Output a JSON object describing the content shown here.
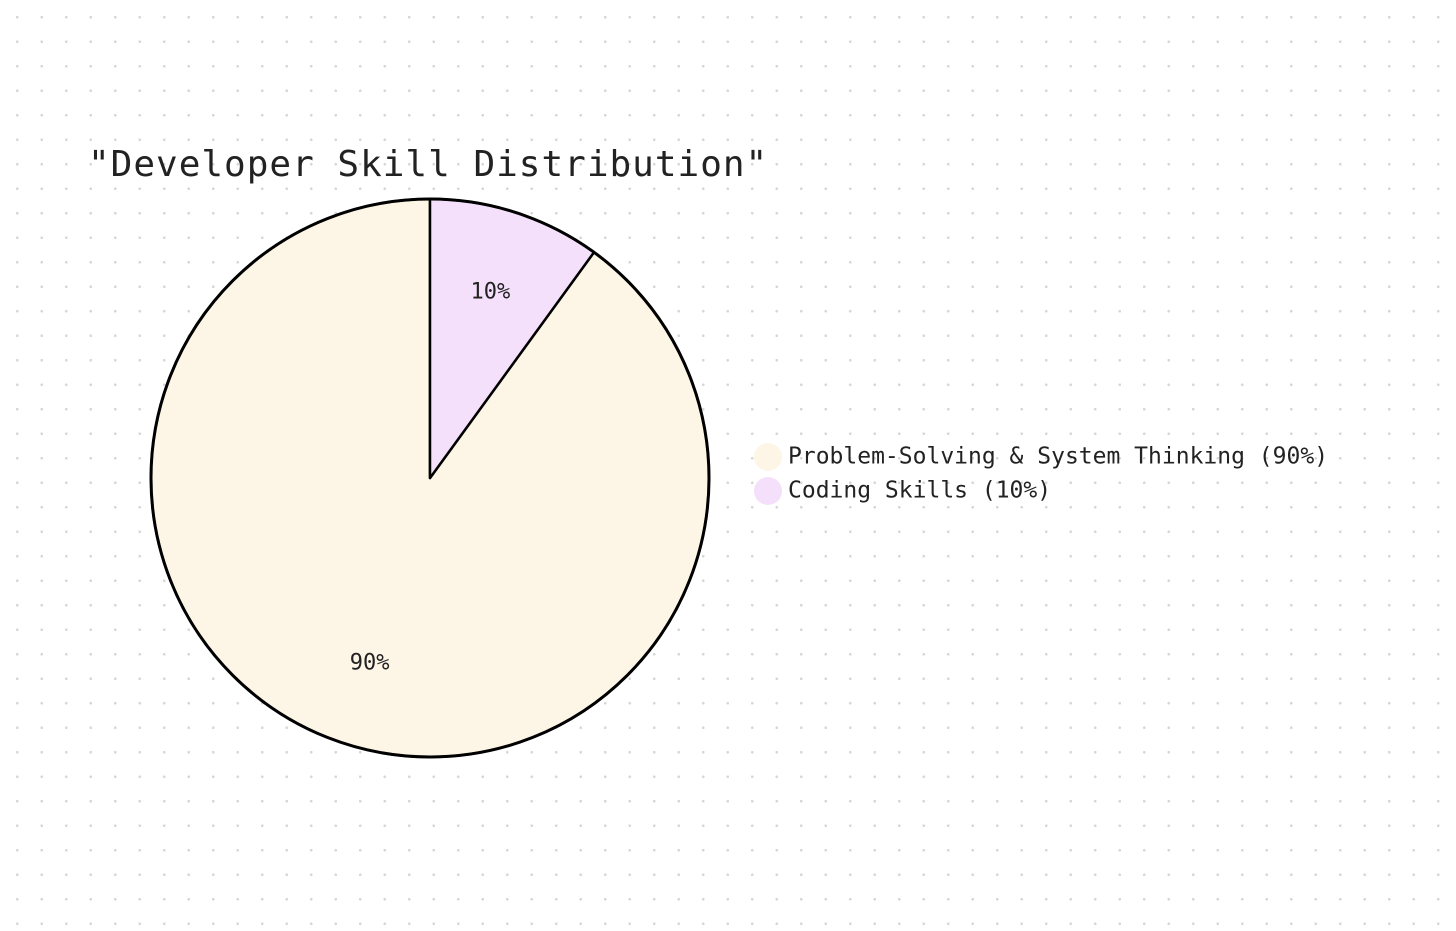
{
  "chart_data": {
    "type": "pie",
    "title": "\"Developer Skill Distribution\"",
    "slices": [
      {
        "label": "Problem-Solving & System Thinking",
        "value": 90,
        "value_label": "90%",
        "legend_label": "Problem-Solving & System Thinking (90%)",
        "color": "#fdf6e6"
      },
      {
        "label": "Coding Skills",
        "value": 10,
        "value_label": "10%",
        "legend_label": "Coding Skills (10%)",
        "color": "#f4e0fb"
      }
    ],
    "start_angle": "12 o'clock",
    "direction": "clockwise",
    "legend_position": "right",
    "grid": false
  },
  "colors": {
    "background": "#ffffff",
    "background_dots": "#d6d6d6",
    "outline": "#000000",
    "text": "#222222"
  }
}
